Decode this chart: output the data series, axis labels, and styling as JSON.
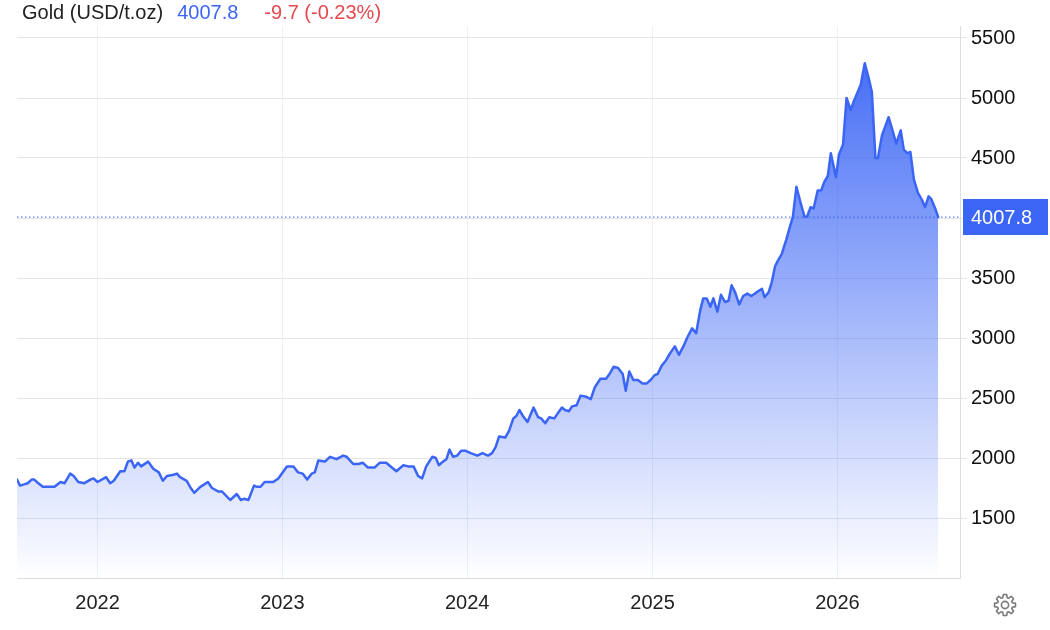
{
  "chart_data": {
    "type": "area",
    "title": "Gold (USD/t.oz)",
    "annotations": [
      "4007.8",
      "-9.7 (-0.23%)"
    ],
    "color": "#3b65f5",
    "grid": true,
    "xlim": [
      "2021-07-26",
      "2026-08-31"
    ],
    "xticks": [
      "2022",
      "2023",
      "2024",
      "2025",
      "2026"
    ],
    "ylim": [
      1000,
      5600
    ],
    "yticks": [
      1500,
      2000,
      2500,
      3000,
      3500,
      {
        "value": 4000,
        "label": null
      },
      4500,
      5000,
      5500
    ],
    "ref_lines": [
      {
        "axis": "y",
        "value": 4007.8,
        "label": "4007.8",
        "color": "#3b65f5",
        "line_style": "dotted"
      }
    ],
    "x": [
      "2021-07-26",
      "2021-08-01",
      "2021-08-09",
      "2021-08-16",
      "2021-08-24",
      "2021-08-29",
      "2021-09-06",
      "2021-09-15",
      "2021-09-24",
      "2021-10-08",
      "2021-10-20",
      "2021-10-28",
      "2021-11-08",
      "2021-11-15",
      "2021-11-24",
      "2021-12-06",
      "2021-12-18",
      "2021-12-24",
      "2022-01-01",
      "2022-01-18",
      "2022-01-26",
      "2022-02-02",
      "2022-02-15",
      "2022-02-23",
      "2022-03-02",
      "2022-03-09",
      "2022-03-15",
      "2022-03-22",
      "2022-03-28",
      "2022-04-11",
      "2022-04-21",
      "2022-05-02",
      "2022-05-10",
      "2022-05-18",
      "2022-05-31",
      "2022-06-07",
      "2022-06-13",
      "2022-06-26",
      "2022-07-04",
      "2022-07-11",
      "2022-07-23",
      "2022-07-31",
      "2022-08-07",
      "2022-08-15",
      "2022-08-28",
      "2022-09-04",
      "2022-09-20",
      "2022-10-03",
      "2022-10-11",
      "2022-10-17",
      "2022-10-26",
      "2022-11-06",
      "2022-11-12",
      "2022-11-19",
      "2022-11-27",
      "2022-12-14",
      "2022-12-24",
      "2023-01-10",
      "2023-01-23",
      "2023-02-01",
      "2023-02-10",
      "2023-02-19",
      "2023-02-28",
      "2023-03-06",
      "2023-03-13",
      "2023-03-26",
      "2023-04-05",
      "2023-04-18",
      "2023-05-01",
      "2023-05-08",
      "2023-05-21",
      "2023-05-31",
      "2023-06-09",
      "2023-06-19",
      "2023-07-02",
      "2023-07-12",
      "2023-07-25",
      "2023-08-14",
      "2023-08-28",
      "2023-09-06",
      "2023-09-17",
      "2023-09-26",
      "2023-10-04",
      "2023-10-12",
      "2023-10-24",
      "2023-10-31",
      "2023-11-06",
      "2023-11-14",
      "2023-11-21",
      "2023-11-27",
      "2023-12-04",
      "2023-12-12",
      "2023-12-20",
      "2023-12-29",
      "2024-01-08",
      "2024-01-21",
      "2024-01-31",
      "2024-02-11",
      "2024-02-19",
      "2024-02-26",
      "2024-03-04",
      "2024-03-16",
      "2024-03-24",
      "2024-04-01",
      "2024-04-07",
      "2024-04-13",
      "2024-04-20",
      "2024-04-29",
      "2024-05-11",
      "2024-05-20",
      "2024-05-26",
      "2024-06-03",
      "2024-06-11",
      "2024-06-21",
      "2024-06-29",
      "2024-07-06",
      "2024-07-12",
      "2024-07-20",
      "2024-07-26",
      "2024-08-04",
      "2024-08-12",
      "2024-08-23",
      "2024-09-01",
      "2024-09-09",
      "2024-09-20",
      "2024-10-01",
      "2024-10-08",
      "2024-10-16",
      "2024-10-25",
      "2024-11-03",
      "2024-11-09",
      "2024-11-16",
      "2024-11-24",
      "2024-12-03",
      "2024-12-12",
      "2024-12-20",
      "2024-12-28",
      "2025-01-05",
      "2025-01-11",
      "2025-01-19",
      "2025-01-27",
      "2025-02-04",
      "2025-02-14",
      "2025-02-22",
      "2025-03-04",
      "2025-03-10",
      "2025-03-20",
      "2025-03-28",
      "2025-04-05",
      "2025-04-11",
      "2025-04-18",
      "2025-04-25",
      "2025-05-01",
      "2025-05-09",
      "2025-05-16",
      "2025-05-24",
      "2025-05-31",
      "2025-06-06",
      "2025-06-13",
      "2025-06-21",
      "2025-06-29",
      "2025-07-07",
      "2025-07-15",
      "2025-07-25",
      "2025-08-05",
      "2025-08-10",
      "2025-08-18",
      "2025-08-24",
      "2025-08-31",
      "2025-09-05",
      "2025-09-13",
      "2025-09-22",
      "2025-09-28",
      "2025-10-05",
      "2025-10-12",
      "2025-10-20",
      "2025-10-28",
      "2025-11-02",
      "2025-11-09",
      "2025-11-15",
      "2025-11-23",
      "2025-11-30",
      "2025-12-06",
      "2025-12-13",
      "2025-12-19",
      "2025-12-26",
      "2025-12-29",
      "2026-01-04",
      "2026-01-12",
      "2026-01-19",
      "2026-01-27",
      "2026-02-03",
      "2026-02-11",
      "2026-02-16",
      "2026-02-24",
      "2026-03-04",
      "2026-03-10",
      "2026-03-17",
      "2026-03-22",
      "2026-03-30",
      "2026-04-06",
      "2026-04-12",
      "2026-04-19",
      "2026-04-27",
      "2026-05-06",
      "2026-05-12",
      "2026-05-19",
      "2026-05-25",
      "2026-06-01",
      "2026-06-09",
      "2026-06-17",
      "2026-06-23",
      "2026-06-30",
      "2026-07-05",
      "2026-07-13",
      "2026-07-19"
    ],
    "values": [
      1820,
      1770,
      1780,
      1790,
      1820,
      1820,
      1790,
      1760,
      1760,
      1760,
      1800,
      1790,
      1870,
      1850,
      1800,
      1790,
      1820,
      1830,
      1800,
      1840,
      1790,
      1810,
      1890,
      1890,
      1970,
      1980,
      1920,
      1960,
      1930,
      1970,
      1910,
      1880,
      1810,
      1850,
      1860,
      1870,
      1840,
      1810,
      1750,
      1710,
      1760,
      1780,
      1800,
      1750,
      1720,
      1720,
      1650,
      1700,
      1650,
      1660,
      1650,
      1770,
      1760,
      1760,
      1800,
      1800,
      1830,
      1930,
      1930,
      1880,
      1870,
      1820,
      1870,
      1880,
      1980,
      1970,
      2010,
      1990,
      2020,
      2010,
      1950,
      1950,
      1960,
      1920,
      1920,
      1960,
      1960,
      1890,
      1940,
      1930,
      1930,
      1850,
      1830,
      1930,
      2010,
      2000,
      1940,
      1970,
      1990,
      2070,
      2010,
      2020,
      2060,
      2060,
      2040,
      2020,
      2040,
      2020,
      2040,
      2090,
      2180,
      2170,
      2230,
      2330,
      2350,
      2400,
      2350,
      2300,
      2420,
      2340,
      2330,
      2290,
      2340,
      2330,
      2380,
      2420,
      2400,
      2390,
      2430,
      2440,
      2520,
      2510,
      2490,
      2590,
      2660,
      2660,
      2700,
      2760,
      2750,
      2700,
      2560,
      2720,
      2650,
      2650,
      2620,
      2620,
      2650,
      2690,
      2700,
      2770,
      2810,
      2870,
      2930,
      2860,
      2940,
      3000,
      3080,
      3040,
      3230,
      3330,
      3330,
      3260,
      3330,
      3220,
      3360,
      3300,
      3310,
      3440,
      3380,
      3280,
      3350,
      3370,
      3350,
      3380,
      3410,
      3340,
      3380,
      3460,
      3600,
      3640,
      3700,
      3820,
      3910,
      4010,
      4260,
      4130,
      4010,
      4010,
      4090,
      4080,
      4230,
      4230,
      4300,
      4350,
      4540,
      4400,
      4340,
      4530,
      4610,
      5000,
      4900,
      4980,
      5060,
      5110,
      5290,
      5160,
      5050,
      4500,
      4500,
      4690,
      4770,
      4840,
      4740,
      4620,
      4730,
      4570,
      4540,
      4550,
      4320,
      4210,
      4150,
      4090,
      4180,
      4160,
      4080,
      4007.8
    ]
  }
}
